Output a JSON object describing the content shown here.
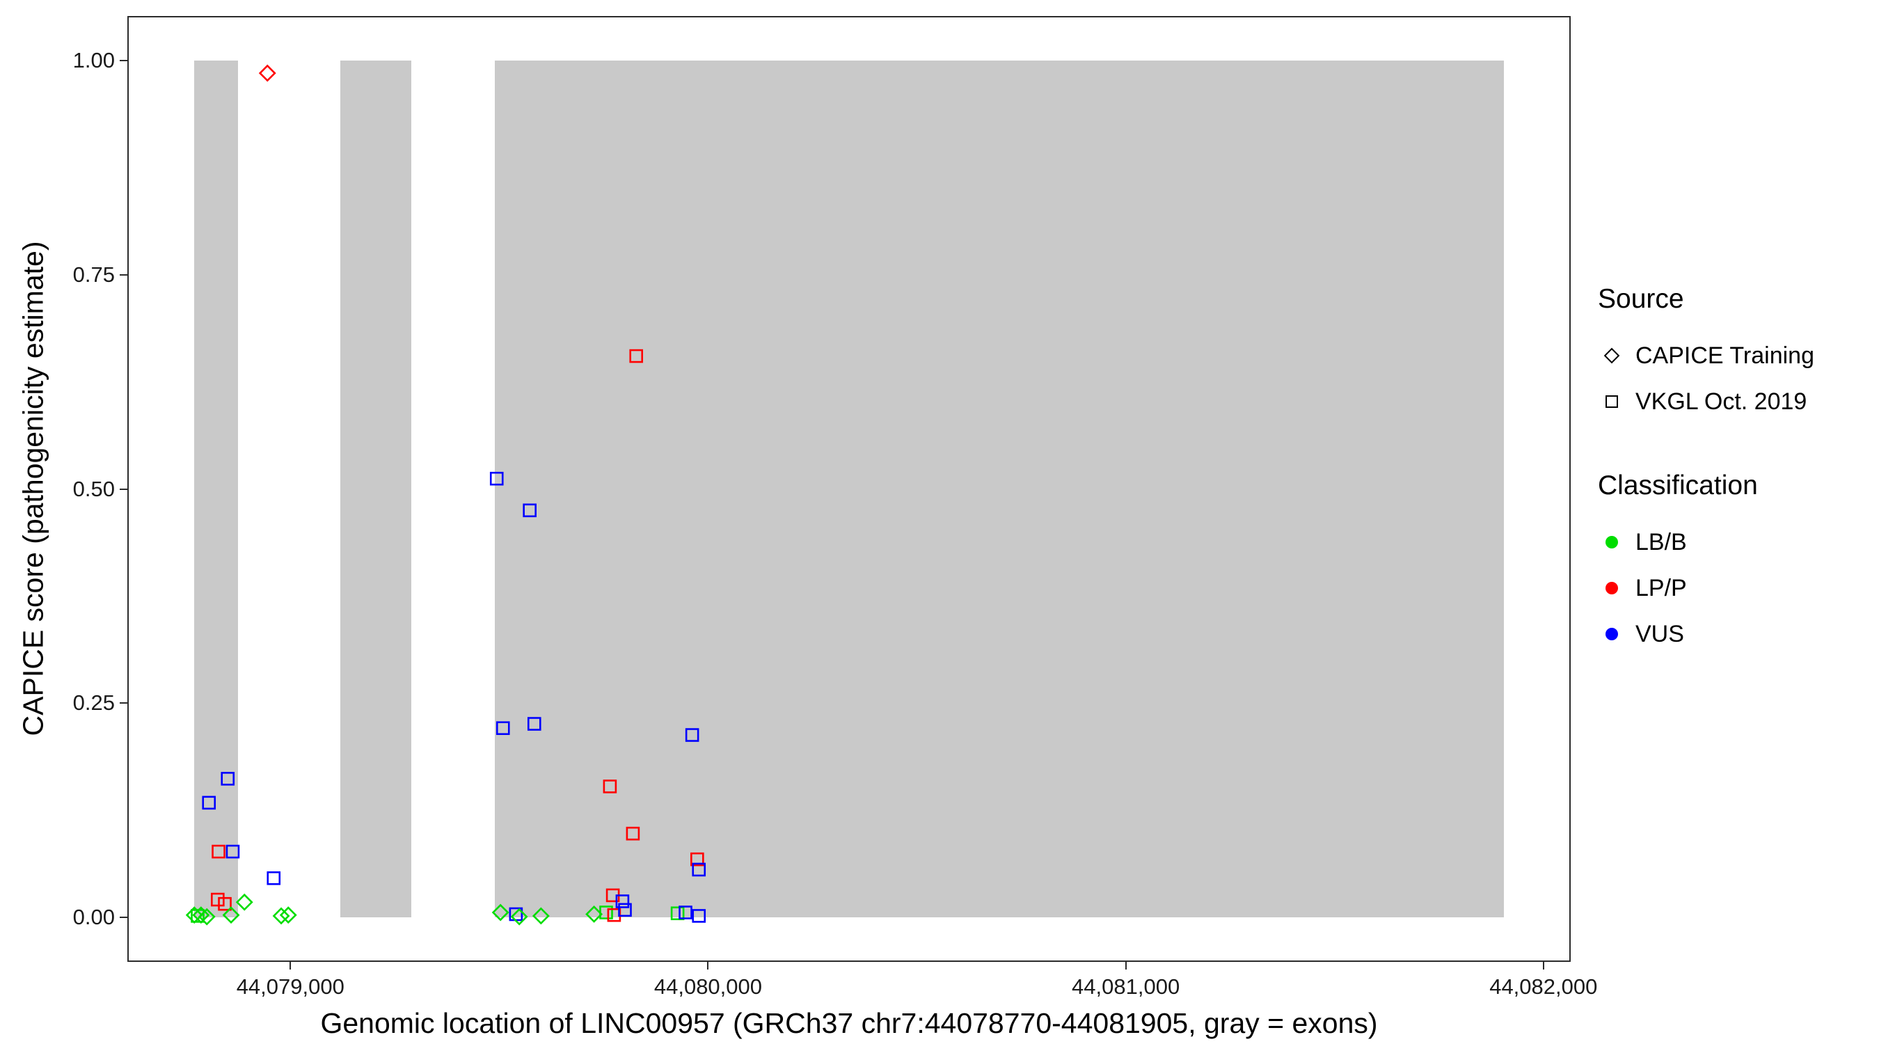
{
  "chart_data": {
    "type": "scatter",
    "title": "",
    "xlabel": "Genomic location of LINC00957 (GRCh37 chr7:44078770-44081905, gray = exons)",
    "ylabel": "CAPICE score (pathogenicity estimate)",
    "xlim": [
      44078613,
      44082062
    ],
    "ylim": [
      -0.05,
      1.05
    ],
    "x_ticks": [
      {
        "value": 44079000,
        "label": "44,079,000"
      },
      {
        "value": 44080000,
        "label": "44,080,000"
      },
      {
        "value": 44081000,
        "label": "44,081,000"
      },
      {
        "value": 44082000,
        "label": "44,082,000"
      }
    ],
    "y_ticks": [
      {
        "value": 0.0,
        "label": "0.00"
      },
      {
        "value": 0.25,
        "label": "0.25"
      },
      {
        "value": 0.5,
        "label": "0.50"
      },
      {
        "value": 0.75,
        "label": "0.75"
      },
      {
        "value": 1.0,
        "label": "1.00"
      }
    ],
    "exon_color": "#c9c9c9",
    "exons": [
      [
        44078770,
        44078875
      ],
      [
        44079120,
        44079290
      ],
      [
        44079490,
        44081905
      ]
    ],
    "classification_colors": {
      "LB/B": "#00dd00",
      "LP/P": "#ff0000",
      "VUS": "#0000ff"
    },
    "source_shapes": {
      "CAPICE Training": "diamond",
      "VKGL Oct. 2019": "square"
    },
    "points": [
      {
        "x": 44078945,
        "y": 0.985,
        "classification": "LP/P",
        "source": "CAPICE Training"
      },
      {
        "x": 44078770,
        "y": 0.003,
        "classification": "LB/B",
        "source": "CAPICE Training"
      },
      {
        "x": 44078778,
        "y": 0.002,
        "classification": "LB/B",
        "source": "VKGL Oct. 2019"
      },
      {
        "x": 44078786,
        "y": 0.003,
        "classification": "LB/B",
        "source": "CAPICE Training"
      },
      {
        "x": 44078800,
        "y": 0.001,
        "classification": "LB/B",
        "source": "CAPICE Training"
      },
      {
        "x": 44078805,
        "y": 0.134,
        "classification": "VUS",
        "source": "VKGL Oct. 2019"
      },
      {
        "x": 44078850,
        "y": 0.162,
        "classification": "VUS",
        "source": "VKGL Oct. 2019"
      },
      {
        "x": 44078828,
        "y": 0.077,
        "classification": "LP/P",
        "source": "VKGL Oct. 2019"
      },
      {
        "x": 44078862,
        "y": 0.077,
        "classification": "VUS",
        "source": "VKGL Oct. 2019"
      },
      {
        "x": 44078826,
        "y": 0.021,
        "classification": "LP/P",
        "source": "VKGL Oct. 2019"
      },
      {
        "x": 44078843,
        "y": 0.016,
        "classification": "LP/P",
        "source": "VKGL Oct. 2019"
      },
      {
        "x": 44078858,
        "y": 0.003,
        "classification": "LB/B",
        "source": "CAPICE Training"
      },
      {
        "x": 44078890,
        "y": 0.018,
        "classification": "LB/B",
        "source": "CAPICE Training"
      },
      {
        "x": 44078960,
        "y": 0.046,
        "classification": "VUS",
        "source": "VKGL Oct. 2019"
      },
      {
        "x": 44078978,
        "y": 0.002,
        "classification": "LB/B",
        "source": "CAPICE Training"
      },
      {
        "x": 44078995,
        "y": 0.003,
        "classification": "LB/B",
        "source": "CAPICE Training"
      },
      {
        "x": 44079494,
        "y": 0.512,
        "classification": "VUS",
        "source": "VKGL Oct. 2019"
      },
      {
        "x": 44079573,
        "y": 0.475,
        "classification": "VUS",
        "source": "VKGL Oct. 2019"
      },
      {
        "x": 44079509,
        "y": 0.221,
        "classification": "VUS",
        "source": "VKGL Oct. 2019"
      },
      {
        "x": 44079584,
        "y": 0.226,
        "classification": "VUS",
        "source": "VKGL Oct. 2019"
      },
      {
        "x": 44079828,
        "y": 0.655,
        "classification": "LP/P",
        "source": "VKGL Oct. 2019"
      },
      {
        "x": 44079765,
        "y": 0.153,
        "classification": "LP/P",
        "source": "VKGL Oct. 2019"
      },
      {
        "x": 44079820,
        "y": 0.098,
        "classification": "LP/P",
        "source": "VKGL Oct. 2019"
      },
      {
        "x": 44079962,
        "y": 0.213,
        "classification": "VUS",
        "source": "VKGL Oct. 2019"
      },
      {
        "x": 44079974,
        "y": 0.068,
        "classification": "LP/P",
        "source": "VKGL Oct. 2019"
      },
      {
        "x": 44079978,
        "y": 0.056,
        "classification": "VUS",
        "source": "VKGL Oct. 2019"
      },
      {
        "x": 44079503,
        "y": 0.006,
        "classification": "LB/B",
        "source": "CAPICE Training"
      },
      {
        "x": 44079540,
        "y": 0.004,
        "classification": "VUS",
        "source": "VKGL Oct. 2019"
      },
      {
        "x": 44079548,
        "y": 0.001,
        "classification": "LB/B",
        "source": "CAPICE Training"
      },
      {
        "x": 44079600,
        "y": 0.002,
        "classification": "LB/B",
        "source": "CAPICE Training"
      },
      {
        "x": 44079727,
        "y": 0.004,
        "classification": "LB/B",
        "source": "CAPICE Training"
      },
      {
        "x": 44079756,
        "y": 0.006,
        "classification": "LB/B",
        "source": "VKGL Oct. 2019"
      },
      {
        "x": 44079772,
        "y": 0.026,
        "classification": "LP/P",
        "source": "VKGL Oct. 2019"
      },
      {
        "x": 44079775,
        "y": 0.003,
        "classification": "LP/P",
        "source": "VKGL Oct. 2019"
      },
      {
        "x": 44079795,
        "y": 0.019,
        "classification": "VUS",
        "source": "VKGL Oct. 2019"
      },
      {
        "x": 44079801,
        "y": 0.009,
        "classification": "VUS",
        "source": "VKGL Oct. 2019"
      },
      {
        "x": 44079927,
        "y": 0.005,
        "classification": "LB/B",
        "source": "VKGL Oct. 2019"
      },
      {
        "x": 44079946,
        "y": 0.006,
        "classification": "VUS",
        "source": "VKGL Oct. 2019"
      },
      {
        "x": 44079978,
        "y": 0.002,
        "classification": "VUS",
        "source": "VKGL Oct. 2019"
      }
    ]
  },
  "legend": {
    "source": {
      "title": "Source",
      "items": [
        {
          "label": "CAPICE Training",
          "shape": "diamond"
        },
        {
          "label": "VKGL Oct. 2019",
          "shape": "square"
        }
      ]
    },
    "classification": {
      "title": "Classification",
      "items": [
        {
          "label": "LB/B",
          "color": "#00dd00"
        },
        {
          "label": "LP/P",
          "color": "#ff0000"
        },
        {
          "label": "VUS",
          "color": "#0000ff"
        }
      ]
    }
  }
}
